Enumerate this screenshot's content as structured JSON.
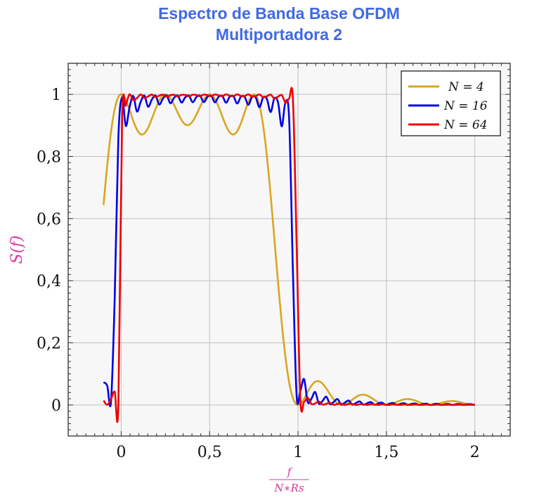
{
  "chart_data": {
    "type": "line",
    "title_line1": "Espectro de Banda Base OFDM",
    "title_line2": "Multiportadora 2",
    "xlabel_num": "f",
    "xlabel_den": "N∗Rs",
    "ylabel": "S(f)",
    "xlim": [
      -0.3,
      2.2
    ],
    "ylim": [
      -0.1,
      1.1
    ],
    "xticks": [
      0,
      0.5,
      1,
      1.5,
      2
    ],
    "xtick_labels": [
      "0",
      "0,5",
      "1",
      "1,5",
      "2"
    ],
    "yticks": [
      0,
      0.2,
      0.4,
      0.6,
      0.8,
      1
    ],
    "ytick_labels": [
      "0",
      "0,2",
      "0,4",
      "0,6",
      "0,8",
      "1"
    ],
    "grid": true,
    "legend_position": "top-right",
    "domain": [
      -0.1,
      2
    ],
    "series": [
      {
        "name": "N = 4",
        "N": 4,
        "color": "#daa520"
      },
      {
        "name": "N = 16",
        "N": 16,
        "color": "#0000e6"
      },
      {
        "name": "N = 64",
        "N": 64,
        "color": "#ee0000"
      }
    ],
    "axis_label_color": "#d63a9a",
    "title_color": "#4169e1",
    "plot_background": "#f7f7f7"
  }
}
